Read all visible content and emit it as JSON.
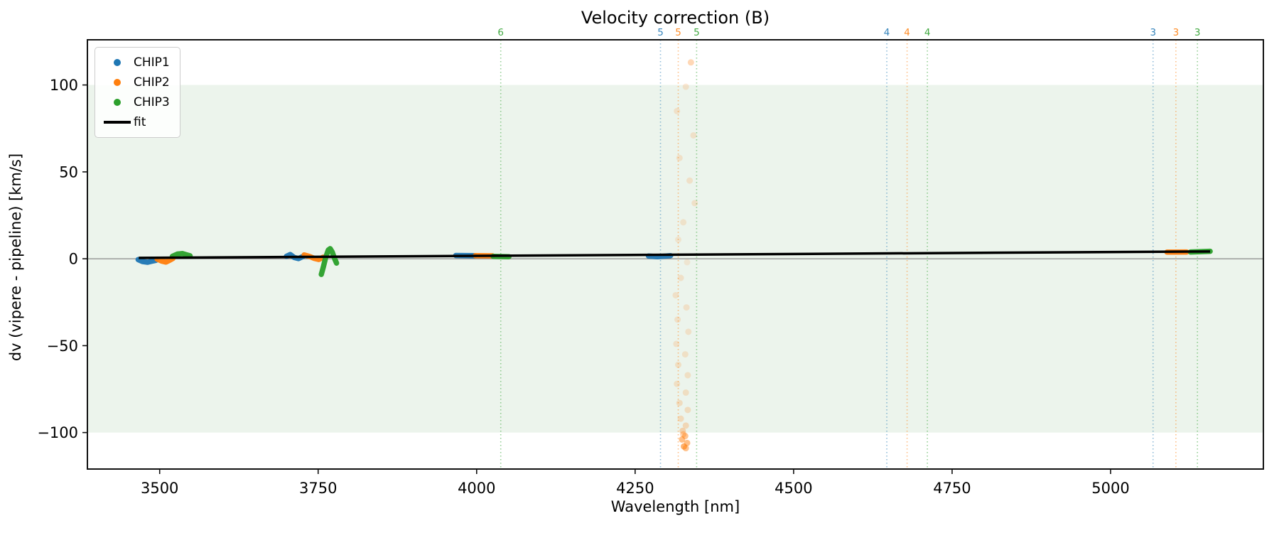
{
  "chart_data": {
    "type": "scatter",
    "title": "Velocity correction (B)",
    "xlabel": "Wavelength [nm]",
    "ylabel": "dv (vipere - pipeline) [km/s]",
    "xlim": [
      3386,
      5241
    ],
    "ylim": [
      -121,
      126
    ],
    "xticks": [
      3500,
      3750,
      4000,
      4250,
      4500,
      4750,
      5000
    ],
    "yticks": [
      -100,
      -50,
      0,
      50,
      100
    ],
    "grid": false,
    "shaded_band": {
      "from": -100,
      "to": 100,
      "color": "#ecf4ec"
    },
    "zero_line": {
      "y": 0,
      "color": "#888888"
    },
    "legend": {
      "position": "upper-left",
      "items": [
        {
          "label": "CHIP1",
          "color": "#1f77b4",
          "marker": "dot"
        },
        {
          "label": "CHIP2",
          "color": "#ff7f0e",
          "marker": "dot"
        },
        {
          "label": "CHIP3",
          "color": "#2ca02c",
          "marker": "dot"
        },
        {
          "label": "fit",
          "color": "#000000",
          "marker": "line"
        }
      ]
    },
    "order_markers": [
      {
        "label": "6",
        "chip": "CHIP3",
        "color": "#2ca02c",
        "wavelength": 4038
      },
      {
        "label": "5",
        "chip": "CHIP1",
        "color": "#1f77b4",
        "wavelength": 4290
      },
      {
        "label": "5",
        "chip": "CHIP2",
        "color": "#ff7f0e",
        "wavelength": 4318
      },
      {
        "label": "5",
        "chip": "CHIP3",
        "color": "#2ca02c",
        "wavelength": 4347
      },
      {
        "label": "4",
        "chip": "CHIP1",
        "color": "#1f77b4",
        "wavelength": 4647
      },
      {
        "label": "4",
        "chip": "CHIP2",
        "color": "#ff7f0e",
        "wavelength": 4679
      },
      {
        "label": "4",
        "chip": "CHIP3",
        "color": "#2ca02c",
        "wavelength": 4711
      },
      {
        "label": "3",
        "chip": "CHIP1",
        "color": "#1f77b4",
        "wavelength": 5067
      },
      {
        "label": "3",
        "chip": "CHIP2",
        "color": "#ff7f0e",
        "wavelength": 5103
      },
      {
        "label": "3",
        "chip": "CHIP3",
        "color": "#2ca02c",
        "wavelength": 5137
      }
    ],
    "fit_line": {
      "color": "#000000",
      "x": [
        3467,
        5157
      ],
      "y": [
        0.5,
        4.2
      ]
    },
    "series": [
      {
        "name": "CHIP1",
        "color": "#1f77b4",
        "clusters": [
          {
            "points": [
              [
                3466,
                -0.5
              ],
              [
                3473,
                -1.6
              ],
              [
                3481,
                -2.0
              ],
              [
                3488,
                -1.4
              ],
              [
                3494,
                -0.9
              ]
            ]
          },
          {
            "points": [
              [
                3700,
                1.4
              ],
              [
                3706,
                2.4
              ],
              [
                3712,
                0.8
              ],
              [
                3719,
                0.1
              ],
              [
                3726,
                1.3
              ]
            ]
          },
          {
            "points": [
              [
                3967,
                1.9
              ],
              [
                3997,
                1.8
              ]
            ]
          },
          {
            "points": [
              [
                4271,
                1.6
              ],
              [
                4285,
                1.2
              ],
              [
                4306,
                1.8
              ]
            ]
          }
        ]
      },
      {
        "name": "CHIP2",
        "color": "#ff7f0e",
        "clusters": [
          {
            "points": [
              [
                3496,
                -0.2
              ],
              [
                3503,
                -1.3
              ],
              [
                3510,
                -1.9
              ],
              [
                3517,
                -0.6
              ],
              [
                3521,
                0.2
              ]
            ]
          },
          {
            "points": [
              [
                3728,
                2.2
              ],
              [
                3736,
                1.4
              ],
              [
                3744,
                0.2
              ],
              [
                3751,
                -0.4
              ],
              [
                3758,
                0.9
              ]
            ]
          },
          {
            "points": [
              [
                3998,
                1.8
              ],
              [
                4025,
                1.7
              ]
            ]
          },
          {
            "points": [
              [
                5089,
                3.8
              ],
              [
                5120,
                3.9
              ]
            ]
          }
        ],
        "outliers": [
          [
            4338,
            113,
            0.3
          ],
          [
            4330,
            99,
            0.16
          ],
          [
            4316,
            85,
            0.16
          ],
          [
            4342,
            71,
            0.16
          ],
          [
            4320,
            58,
            0.16
          ],
          [
            4336,
            45,
            0.16
          ],
          [
            4344,
            32,
            0.16
          ],
          [
            4326,
            21,
            0.15
          ],
          [
            4318,
            11,
            0.13
          ],
          [
            4332,
            -2,
            0.12
          ],
          [
            4322,
            -11,
            0.16
          ],
          [
            4314,
            -21,
            0.16
          ],
          [
            4331,
            -28,
            0.16
          ],
          [
            4317,
            -35,
            0.16
          ],
          [
            4334,
            -42,
            0.16
          ],
          [
            4315,
            -49,
            0.16
          ],
          [
            4329,
            -55,
            0.17
          ],
          [
            4318,
            -61,
            0.18
          ],
          [
            4333,
            -67,
            0.18
          ],
          [
            4316,
            -72,
            0.18
          ],
          [
            4330,
            -77,
            0.19
          ],
          [
            4320,
            -83,
            0.2
          ],
          [
            4333,
            -87,
            0.2
          ],
          [
            4322,
            -92,
            0.22
          ],
          [
            4330,
            -96,
            0.24
          ],
          [
            4325,
            -99,
            0.3
          ],
          [
            4329,
            -102,
            0.45
          ],
          [
            4324,
            -104,
            0.5
          ],
          [
            4332,
            -106,
            0.5
          ],
          [
            4327,
            -108,
            0.6
          ],
          [
            4330,
            -109,
            0.45
          ],
          [
            4326,
            -101,
            0.35
          ]
        ]
      },
      {
        "name": "CHIP3",
        "color": "#2ca02c",
        "clusters": [
          {
            "points": [
              [
                3520,
                1.4
              ],
              [
                3528,
                2.7
              ],
              [
                3536,
                3.0
              ],
              [
                3543,
                2.2
              ],
              [
                3548,
                1.7
              ]
            ]
          },
          {
            "points": [
              [
                3755,
                -9.0
              ],
              [
                3758,
                -5.0
              ],
              [
                3762,
                1.0
              ],
              [
                3766,
                5.0
              ],
              [
                3769,
                5.8
              ],
              [
                3772,
                4.0
              ],
              [
                3776,
                0.0
              ],
              [
                3779,
                -2.5
              ]
            ]
          },
          {
            "points": [
              [
                4026,
                1.4
              ],
              [
                4051,
                1.2
              ]
            ]
          },
          {
            "points": [
              [
                5126,
                3.9
              ],
              [
                5157,
                4.3
              ]
            ]
          }
        ]
      }
    ]
  }
}
